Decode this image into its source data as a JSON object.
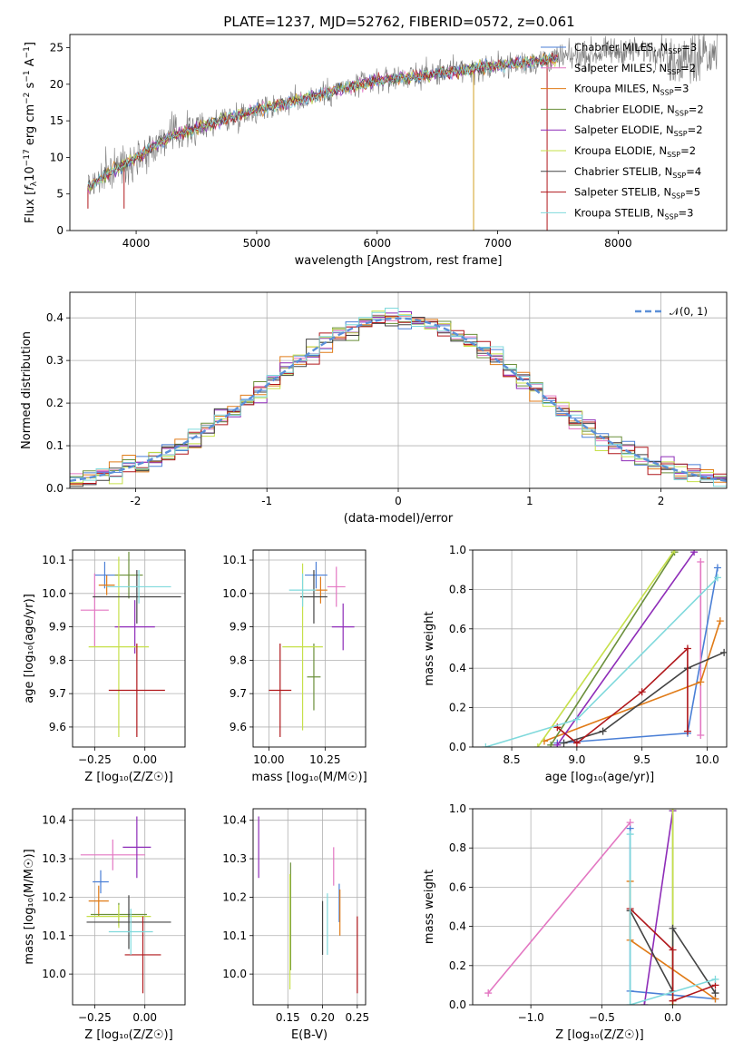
{
  "figure_title": "PLATE=1237, MJD=52762, FIBERID=0572, z=0.061",
  "series_colors": {
    "Chabrier MILES": "#4a7fd6",
    "Salpeter MILES": "#e377c2",
    "Kroupa MILES": "#e07b18",
    "Chabrier ELODIE": "#6a8f3a",
    "Salpeter ELODIE": "#8e2cb8",
    "Kroupa ELODIE": "#c6e04a",
    "Chabrier STELIB": "#444444",
    "Salpeter STELIB": "#b0171b",
    "Kroupa STELIB": "#7fd9dc"
  },
  "chart_data": [
    {
      "id": "spectrum",
      "type": "line",
      "xlabel": "wavelength [Angstrom, rest frame]",
      "ylabel_pre": "Flux [",
      "ylabel_sub": "λ",
      "ylabel_mid": "10",
      "ylabel_sup1": "−17",
      "ylabel_post": " erg cm",
      "ylabel_sup2": "−2",
      "ylabel_s": " s",
      "ylabel_sup3": "−1",
      "ylabel_end": " A",
      "ylabel_sup4": "−1",
      "ylabel_close": "]",
      "xlim": [
        3450,
        8900
      ],
      "ylim": [
        0,
        26.8
      ],
      "xticks": [
        4000,
        5000,
        6000,
        7000,
        8000
      ],
      "yticks": [
        0,
        5,
        10,
        15,
        20,
        25
      ],
      "legend_position": "right",
      "legend": [
        {
          "name": "Chabrier MILES",
          "nssp": "3"
        },
        {
          "name": "Salpeter MILES",
          "nssp": "2"
        },
        {
          "name": "Kroupa MILES",
          "nssp": "3"
        },
        {
          "name": "Chabrier ELODIE",
          "nssp": "2"
        },
        {
          "name": "Salpeter ELODIE",
          "nssp": "2"
        },
        {
          "name": "Kroupa ELODIE",
          "nssp": "2"
        },
        {
          "name": "Chabrier STELIB",
          "nssp": "4"
        },
        {
          "name": "Salpeter STELIB",
          "nssp": "5"
        },
        {
          "name": "Kroupa STELIB",
          "nssp": "3"
        }
      ],
      "nssp_label": "N",
      "nssp_sub": "SSP",
      "continuum_anchors": [
        [
          3600,
          6
        ],
        [
          3700,
          7
        ],
        [
          3800,
          8.2
        ],
        [
          3950,
          9.5
        ],
        [
          4100,
          11
        ],
        [
          4300,
          13
        ],
        [
          4600,
          14.5
        ],
        [
          5000,
          16.5
        ],
        [
          5500,
          18.5
        ],
        [
          6000,
          20.5
        ],
        [
          6500,
          21.5
        ],
        [
          7000,
          22.5
        ],
        [
          7500,
          23.5
        ],
        [
          8000,
          24.5
        ],
        [
          8500,
          24.8
        ],
        [
          8800,
          24.5
        ]
      ]
    },
    {
      "id": "residuals",
      "type": "line",
      "xlabel": "(data-model)/error",
      "ylabel": "Normed distribution",
      "xlim": [
        -2.5,
        2.5
      ],
      "ylim": [
        0,
        0.46
      ],
      "xticks": [
        -2,
        -1,
        0,
        1,
        2
      ],
      "yticks": [
        0.0,
        0.1,
        0.2,
        0.3,
        0.4
      ],
      "grid": true,
      "legend_position": "top-right",
      "gauss_label": "𝒩(0, 1)",
      "bin_width": 0.1,
      "bin_start": -2.5
    },
    {
      "id": "age_vs_Z",
      "type": "scatter",
      "xlabel": "Z [log₁₀(Z/Z☉)]",
      "ylabel": "age  [log₁₀(age/yr)]",
      "xlim": [
        -0.36,
        0.2
      ],
      "ylim": [
        9.54,
        10.13
      ],
      "xticks": [
        -0.25,
        0.0
      ],
      "xtick_labels": [
        "−0.25",
        "0.00"
      ],
      "yticks": [
        9.6,
        9.7,
        9.8,
        9.9,
        10.0,
        10.1
      ],
      "grid": true,
      "points": [
        {
          "s": "Chabrier MILES",
          "x": -0.2,
          "xe": 0.05,
          "y": 10.055,
          "ye": 0.04
        },
        {
          "s": "Salpeter MILES",
          "x": -0.25,
          "xe": 0.07,
          "y": 9.95,
          "ye": 0.11
        },
        {
          "s": "Kroupa MILES",
          "x": -0.19,
          "xe": 0.04,
          "y": 10.025,
          "ye": 0.03
        },
        {
          "s": "Chabrier ELODIE",
          "x": -0.08,
          "xe": 0.07,
          "y": 10.055,
          "ye": 0.07
        },
        {
          "s": "Salpeter ELODIE",
          "x": -0.05,
          "xe": 0.1,
          "y": 9.9,
          "ye": 0.08
        },
        {
          "s": "Kroupa ELODIE",
          "x": -0.13,
          "xe": 0.15,
          "y": 9.84,
          "ye": 0.27
        },
        {
          "s": "Chabrier STELIB",
          "x": -0.04,
          "xe": 0.22,
          "y": 9.99,
          "ye": 0.08
        },
        {
          "s": "Salpeter STELIB",
          "x": -0.04,
          "xe": 0.14,
          "y": 9.71,
          "ye": 0.14
        },
        {
          "s": "Kroupa STELIB",
          "x": -0.03,
          "xe": 0.16,
          "y": 10.02,
          "ye": 0.05
        }
      ]
    },
    {
      "id": "age_vs_mass",
      "type": "scatter",
      "xlabel": "mass [log₁₀(M/M☉)]",
      "ylabel": "",
      "xlim": [
        9.93,
        10.43
      ],
      "ylim": [
        9.54,
        10.13
      ],
      "xticks": [
        10.0,
        10.25
      ],
      "xtick_labels": [
        "10.00",
        "10.25"
      ],
      "yticks": [
        9.6,
        9.7,
        9.8,
        9.9,
        10.0,
        10.1
      ],
      "grid": true,
      "points": [
        {
          "s": "Chabrier MILES",
          "x": 10.21,
          "xe": 0.05,
          "y": 10.055,
          "ye": 0.04
        },
        {
          "s": "Salpeter MILES",
          "x": 10.3,
          "xe": 0.04,
          "y": 10.02,
          "ye": 0.06
        },
        {
          "s": "Kroupa MILES",
          "x": 10.23,
          "xe": 0.03,
          "y": 10.01,
          "ye": 0.04
        },
        {
          "s": "Chabrier ELODIE",
          "x": 10.2,
          "xe": 0.03,
          "y": 9.75,
          "ye": 0.1
        },
        {
          "s": "Salpeter ELODIE",
          "x": 10.33,
          "xe": 0.05,
          "y": 9.9,
          "ye": 0.07
        },
        {
          "s": "Kroupa ELODIE",
          "x": 10.15,
          "xe": 0.09,
          "y": 9.84,
          "ye": 0.25
        },
        {
          "s": "Chabrier STELIB",
          "x": 10.2,
          "xe": 0.06,
          "y": 9.99,
          "ye": 0.08
        },
        {
          "s": "Salpeter STELIB",
          "x": 10.05,
          "xe": 0.05,
          "y": 9.71,
          "ye": 0.14
        },
        {
          "s": "Kroupa STELIB",
          "x": 10.15,
          "xe": 0.06,
          "y": 10.01,
          "ye": 0.05
        }
      ]
    },
    {
      "id": "weight_vs_age",
      "type": "line",
      "xlabel": "age  [log₁₀(age/yr)]",
      "ylabel": "mass weight",
      "xlim": [
        8.2,
        10.15
      ],
      "ylim": [
        0,
        1.0
      ],
      "xticks": [
        8.5,
        9.0,
        9.5,
        10.0
      ],
      "xtick_labels": [
        "8.5",
        "9.0",
        "9.5",
        "10.0"
      ],
      "yticks": [
        0.0,
        0.2,
        0.4,
        0.6,
        0.8,
        1.0
      ],
      "grid": true,
      "series": [
        {
          "name": "Chabrier MILES",
          "x": [
            8.85,
            9.85,
            10.08
          ],
          "y": [
            0.02,
            0.07,
            0.91
          ]
        },
        {
          "name": "Salpeter MILES",
          "x": [
            9.95,
            9.95
          ],
          "y": [
            0.06,
            0.94
          ]
        },
        {
          "name": "Kroupa MILES",
          "x": [
            8.75,
            9.95,
            10.1
          ],
          "y": [
            0.03,
            0.33,
            0.64
          ]
        },
        {
          "name": "Chabrier ELODIE",
          "x": [
            8.8,
            9.75
          ],
          "y": [
            0.01,
            0.99
          ]
        },
        {
          "name": "Salpeter ELODIE",
          "x": [
            8.85,
            9.9
          ],
          "y": [
            0.01,
            0.99
          ]
        },
        {
          "name": "Kroupa ELODIE",
          "x": [
            8.7,
            9.75
          ],
          "y": [
            0.0,
            1.0
          ]
        },
        {
          "name": "Chabrier STELIB",
          "x": [
            8.9,
            9.2,
            9.85,
            10.13
          ],
          "y": [
            0.02,
            0.08,
            0.4,
            0.48
          ]
        },
        {
          "name": "Salpeter STELIB",
          "x": [
            8.85,
            9.0,
            9.5,
            9.85,
            9.85
          ],
          "y": [
            0.1,
            0.02,
            0.28,
            0.5,
            0.08
          ]
        },
        {
          "name": "Kroupa STELIB",
          "x": [
            8.3,
            9.0,
            10.08
          ],
          "y": [
            0.0,
            0.14,
            0.86
          ]
        }
      ]
    },
    {
      "id": "mass_vs_Z",
      "type": "scatter",
      "xlabel": "Z [log₁₀(Z/Z☉)]",
      "ylabel": "mass [log₁₀(M/M☉)]",
      "xlim": [
        -0.36,
        0.2
      ],
      "ylim": [
        9.92,
        10.43
      ],
      "xticks": [
        -0.25,
        0.0
      ],
      "xtick_labels": [
        "−0.25",
        "0.00"
      ],
      "yticks": [
        10.0,
        10.1,
        10.2,
        10.3,
        10.4
      ],
      "grid": true,
      "points": [
        {
          "s": "Chabrier MILES",
          "x": -0.22,
          "xe": 0.04,
          "y": 10.24,
          "ye": 0.03
        },
        {
          "s": "Salpeter MILES",
          "x": -0.16,
          "xe": 0.16,
          "y": 10.31,
          "ye": 0.04
        },
        {
          "s": "Kroupa MILES",
          "x": -0.23,
          "xe": 0.05,
          "y": 10.19,
          "ye": 0.04
        },
        {
          "s": "Chabrier ELODIE",
          "x": -0.13,
          "xe": 0.14,
          "y": 10.155,
          "ye": 0.03
        },
        {
          "s": "Salpeter ELODIE",
          "x": -0.04,
          "xe": 0.07,
          "y": 10.33,
          "ye": 0.08
        },
        {
          "s": "Kroupa ELODIE",
          "x": -0.13,
          "xe": 0.16,
          "y": 10.15,
          "ye": 0.03
        },
        {
          "s": "Chabrier STELIB",
          "x": -0.08,
          "xe": 0.21,
          "y": 10.135,
          "ye": 0.07
        },
        {
          "s": "Salpeter STELIB",
          "x": -0.01,
          "xe": 0.09,
          "y": 10.05,
          "ye": 0.1
        },
        {
          "s": "Kroupa STELIB",
          "x": -0.07,
          "xe": 0.11,
          "y": 10.11,
          "ye": 0.06
        }
      ]
    },
    {
      "id": "mass_vs_ebv",
      "type": "scatter",
      "xlabel": "E(B-V)",
      "ylabel": "",
      "xlim": [
        0.1,
        0.262
      ],
      "ylim": [
        9.92,
        10.43
      ],
      "xticks": [
        0.15,
        0.2,
        0.25
      ],
      "xtick_labels": [
        "0.15",
        "0.20",
        "0.25"
      ],
      "yticks": [
        10.0,
        10.1,
        10.2,
        10.3,
        10.4
      ],
      "grid": true,
      "points": [
        {
          "s": "Chabrier MILES",
          "x": 0.224,
          "xe": 0,
          "y": 10.185,
          "ye": 0.05
        },
        {
          "s": "Salpeter MILES",
          "x": 0.216,
          "xe": 0,
          "y": 10.28,
          "ye": 0.05
        },
        {
          "s": "Kroupa MILES",
          "x": 0.225,
          "xe": 0,
          "y": 10.16,
          "ye": 0.06
        },
        {
          "s": "Chabrier ELODIE",
          "x": 0.154,
          "xe": 0,
          "y": 10.15,
          "ye": 0.14
        },
        {
          "s": "Salpeter ELODIE",
          "x": 0.108,
          "xe": 0,
          "y": 10.33,
          "ye": 0.08
        },
        {
          "s": "Kroupa ELODIE",
          "x": 0.153,
          "xe": 0,
          "y": 10.11,
          "ye": 0.15
        },
        {
          "s": "Chabrier STELIB",
          "x": 0.2,
          "xe": 0,
          "y": 10.12,
          "ye": 0.07
        },
        {
          "s": "Salpeter STELIB",
          "x": 0.25,
          "xe": 0,
          "y": 10.05,
          "ye": 0.1
        },
        {
          "s": "Kroupa STELIB",
          "x": 0.207,
          "xe": 0,
          "y": 10.13,
          "ye": 0.08
        }
      ]
    },
    {
      "id": "weight_vs_Z",
      "type": "line",
      "xlabel": "Z [log₁₀(Z/Z☉)]",
      "ylabel": "mass weight",
      "xlim": [
        -1.41,
        0.38
      ],
      "ylim": [
        0,
        1.0
      ],
      "xticks": [
        -1.0,
        -0.5,
        0.0
      ],
      "xtick_labels": [
        "−1.0",
        "−0.5",
        "0.0"
      ],
      "yticks": [
        0.0,
        0.2,
        0.4,
        0.6,
        0.8,
        1.0
      ],
      "grid": true,
      "series": [
        {
          "name": "Chabrier MILES",
          "x": [
            -0.3,
            -0.3,
            0.3
          ],
          "y": [
            0.9,
            0.07,
            0.03
          ]
        },
        {
          "name": "Salpeter MILES",
          "x": [
            -1.3,
            -0.3
          ],
          "y": [
            0.06,
            0.93
          ]
        },
        {
          "name": "Kroupa MILES",
          "x": [
            -0.3,
            -0.3,
            0.3
          ],
          "y": [
            0.63,
            0.33,
            0.03
          ]
        },
        {
          "name": "Chabrier ELODIE",
          "x": [
            0.0,
            0.0
          ],
          "y": [
            0.0,
            0.99
          ]
        },
        {
          "name": "Salpeter ELODIE",
          "x": [
            -0.2,
            0.0
          ],
          "y": [
            0.0,
            0.99
          ]
        },
        {
          "name": "Kroupa ELODIE",
          "x": [
            0.0,
            0.0
          ],
          "y": [
            0.0,
            1.0
          ]
        },
        {
          "name": "Chabrier STELIB",
          "x": [
            -0.3,
            0.0,
            0.0,
            0.3
          ],
          "y": [
            0.48,
            0.07,
            0.39,
            0.06
          ]
        },
        {
          "name": "Salpeter STELIB",
          "x": [
            -0.3,
            0.0,
            0.0,
            0.3
          ],
          "y": [
            0.49,
            0.28,
            0.02,
            0.1
          ]
        },
        {
          "name": "Kroupa STELIB",
          "x": [
            -0.3,
            -0.3,
            0.3
          ],
          "y": [
            0.87,
            0.0,
            0.13
          ]
        }
      ]
    }
  ]
}
